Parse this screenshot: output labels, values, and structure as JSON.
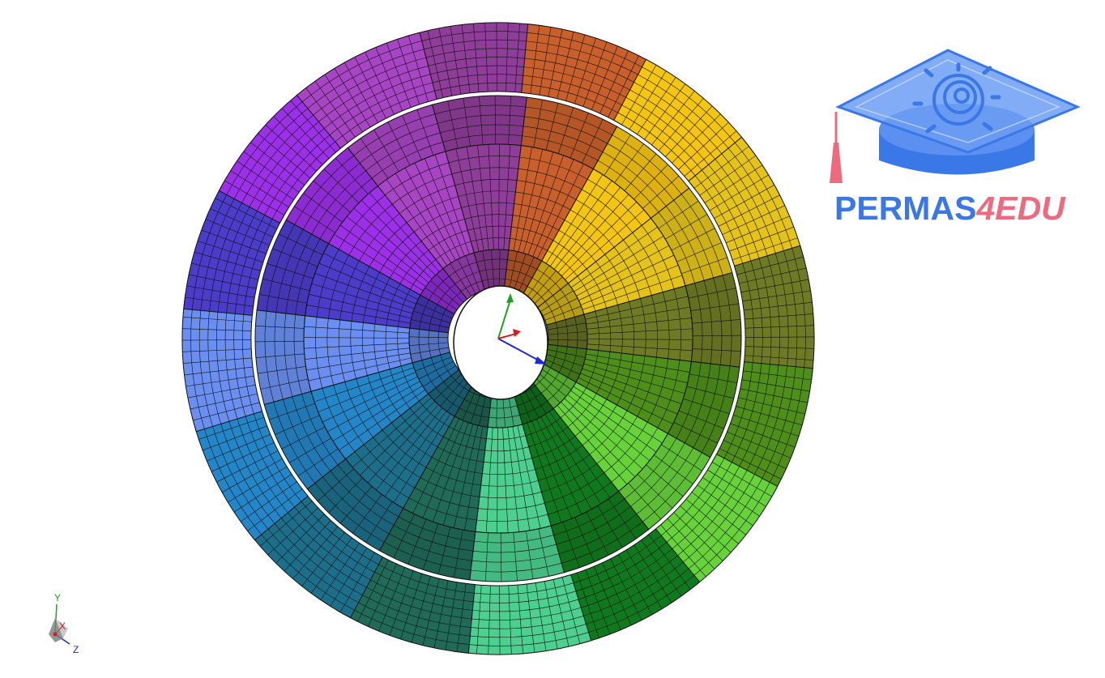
{
  "viewer": {
    "background": "#ffffff",
    "model": {
      "sectors": 16,
      "sector_colors": [
        "#8e3d99",
        "#c9602b",
        "#f4c513",
        "#e5c31a",
        "#6f7b24",
        "#4e8f1a",
        "#67d23a",
        "#0f7a1d",
        "#4ccf8f",
        "#1f6b58",
        "#1c6f8a",
        "#2386c9",
        "#6a8ff0",
        "#4b3cc9",
        "#9b30e8",
        "#a845c4"
      ],
      "mesh_line_color": "#111111"
    },
    "axes": {
      "x_color": "#d21e1e",
      "y_color": "#1fa01f",
      "z_color": "#1f2bd2"
    }
  },
  "logo": {
    "text_main": "PERMAS",
    "text_accent": "4EDU",
    "main_color": "#3b78e7",
    "accent_color": "#ee6b7f"
  },
  "triad": {
    "label_y": "Y",
    "label_x": "X",
    "label_z": "Z"
  }
}
